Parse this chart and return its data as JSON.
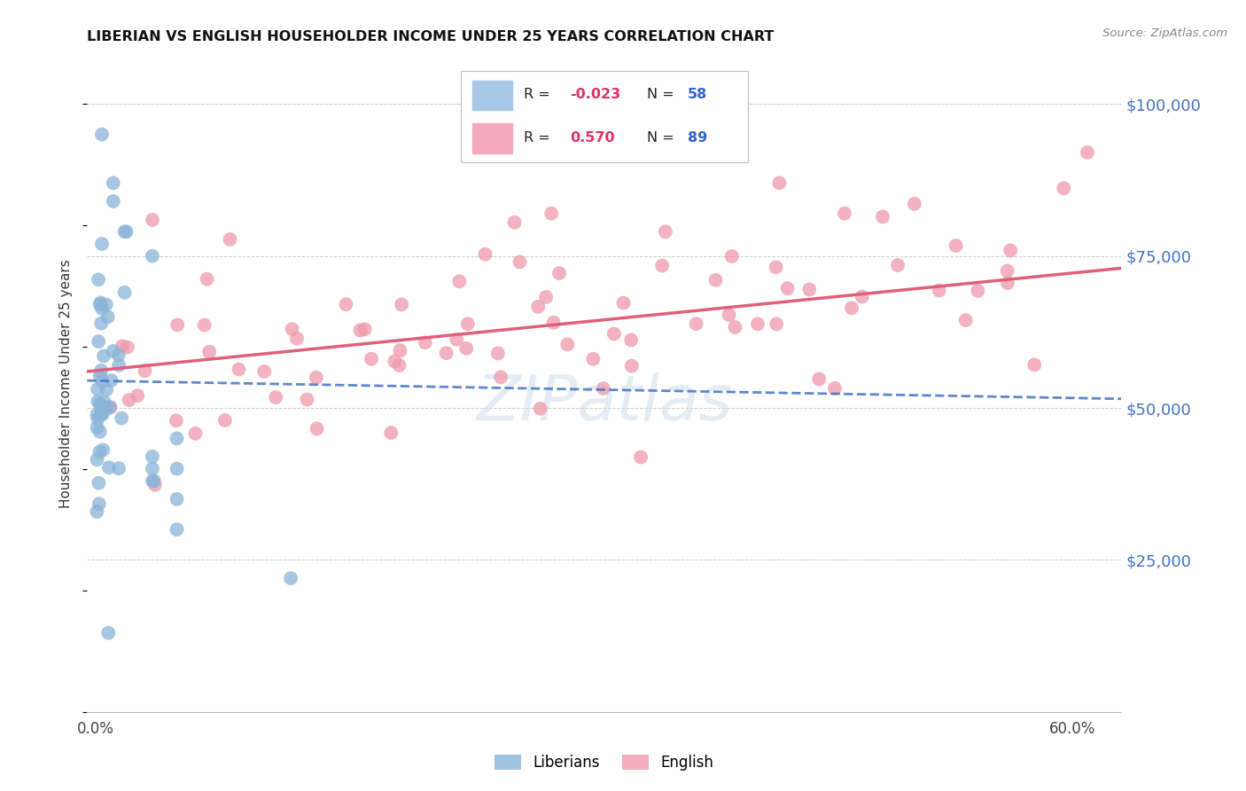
{
  "title": "LIBERIAN VS ENGLISH HOUSEHOLDER INCOME UNDER 25 YEARS CORRELATION CHART",
  "source": "Source: ZipAtlas.com",
  "ylabel": "Householder Income Under 25 years",
  "ytick_labels": [
    "$25,000",
    "$50,000",
    "$75,000",
    "$100,000"
  ],
  "ytick_values": [
    25000,
    50000,
    75000,
    100000
  ],
  "ylim": [
    0,
    108000
  ],
  "xlim": [
    -0.005,
    0.63
  ],
  "background_color": "#ffffff",
  "grid_color": "#cccccc",
  "watermark": "ZIPatlas",
  "liberian_color": "#8ab4d8",
  "english_color": "#f099aa",
  "liberian_line_color": "#4472c4",
  "english_line_color": "#e0607a",
  "lib_R": "-0.023",
  "lib_N": "58",
  "eng_R": "0.570",
  "eng_N": "89",
  "lib_legend_color": "#a8c8e8",
  "eng_legend_color": "#f4aabb"
}
